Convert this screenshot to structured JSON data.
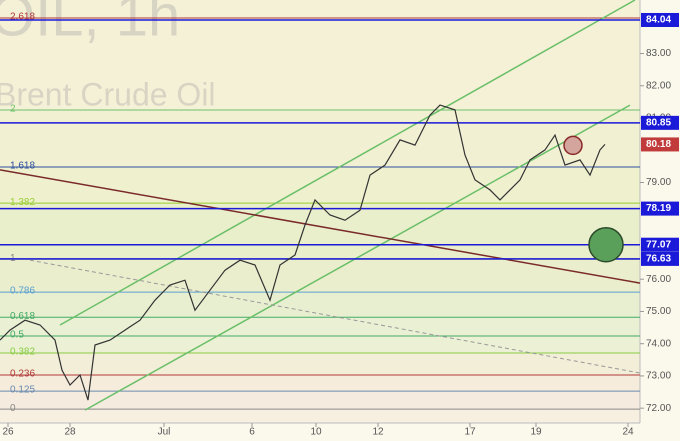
{
  "chart_data": {
    "type": "line",
    "title": "OIL, 1h",
    "subtitle": "Brent Crude Oil",
    "xlim": [
      0,
      160
    ],
    "ylim": [
      71.54,
      84.66
    ],
    "xticks": [
      {
        "value": 2,
        "label": "26"
      },
      {
        "value": 17.5,
        "label": "28"
      },
      {
        "value": 41,
        "label": "Jul"
      },
      {
        "value": 63,
        "label": "6"
      },
      {
        "value": 79,
        "label": "10"
      },
      {
        "value": 94.5,
        "label": "12"
      },
      {
        "value": 117.5,
        "label": "17"
      },
      {
        "value": 134,
        "label": "19"
      },
      {
        "value": 157,
        "label": "24"
      }
    ],
    "yticks": [
      {
        "value": 72,
        "label": "72.00"
      },
      {
        "value": 73,
        "label": "73.00"
      },
      {
        "value": 74,
        "label": "74.00"
      },
      {
        "value": 75,
        "label": "75.00"
      },
      {
        "value": 76,
        "label": "76.00"
      },
      {
        "value": 79,
        "label": "79.00"
      },
      {
        "value": 81,
        "label": "81.00"
      },
      {
        "value": 82,
        "label": "82.00"
      },
      {
        "value": 83,
        "label": "83.00"
      }
    ],
    "series": [
      {
        "name": "Brent Crude Oil",
        "color": "#333333",
        "x": [
          0,
          2.5,
          6.25,
          10,
          13.75,
          15.5,
          17.5,
          20,
          22,
          23.75,
          27.5,
          31.25,
          35,
          38.75,
          42.5,
          46.25,
          48.75,
          52.5,
          56.25,
          60,
          63.75,
          67.5,
          70,
          73.75,
          76.25,
          78.75,
          82.5,
          86.25,
          90,
          92.5,
          96.25,
          100,
          103.75,
          107.5,
          110,
          113.75,
          116.25,
          118.75,
          122.5,
          125,
          127.5,
          130,
          132.5,
          136.25,
          138.75,
          141.25,
          145,
          147.5,
          150,
          151.25
        ],
        "values": [
          74.11,
          74.42,
          74.73,
          74.58,
          74.11,
          73.18,
          72.72,
          73.03,
          72.25,
          73.96,
          74.11,
          74.42,
          74.73,
          75.35,
          75.82,
          75.97,
          75.04,
          75.66,
          76.28,
          76.59,
          76.44,
          75.35,
          76.44,
          76.75,
          77.68,
          78.46,
          77.99,
          77.83,
          78.14,
          79.23,
          79.54,
          80.32,
          80.16,
          81.09,
          81.4,
          81.25,
          79.85,
          79.08,
          78.77,
          78.46,
          78.77,
          79.08,
          79.7,
          80.01,
          80.47,
          79.54,
          79.7,
          79.23,
          80.01,
          80.18
        ]
      }
    ],
    "fib_levels": [
      {
        "label": "2.618",
        "price": 84.1,
        "color": "#b03a3a",
        "band": "#f5f1d6"
      },
      {
        "label": "2",
        "price": 81.25,
        "color": "#6abf69",
        "band": "#f1f0d2"
      },
      {
        "label": "1.618",
        "price": 79.48,
        "color": "#3050a0",
        "band": "#eef0ce"
      },
      {
        "label": "1.382",
        "price": 78.36,
        "color": "#9acd32",
        "band": "#e9eecb"
      },
      {
        "label": "1",
        "price": 76.62,
        "color": "#888888",
        "band": "#eaeecc"
      },
      {
        "label": "0.786",
        "price": 75.6,
        "color": "#5aa0d0",
        "band": "#e8efd0"
      },
      {
        "label": "0.618",
        "price": 74.82,
        "color": "#44aa66",
        "band": "#e9f0d3"
      },
      {
        "label": "0.5",
        "price": 74.24,
        "color": "#44aa66",
        "band": "#ecf1d5"
      },
      {
        "label": "0.382",
        "price": 73.71,
        "color": "#88cc44",
        "band": "#f3eed8"
      },
      {
        "label": "0.236",
        "price": 73.03,
        "color": "#b03a3a",
        "band": "#f6ecdc"
      },
      {
        "label": "0.125",
        "price": 72.53,
        "color": "#6a8ab0",
        "band": "#f5ecdf"
      },
      {
        "label": "0",
        "price": 71.97,
        "color": "#888888",
        "band": "#f7efe0"
      }
    ],
    "key_levels": [
      84.04,
      80.85,
      78.19,
      77.07,
      76.63
    ],
    "key_color": "#1a1ad8",
    "last_price": 80.18,
    "last_color": "#c23b3b",
    "trend_lines": [
      {
        "x": [
          15,
          158.75
        ],
        "price": [
          74.58,
          84.66
        ],
        "color": "#6abf69",
        "dash": false
      },
      {
        "x": [
          21.25,
          157.5
        ],
        "price": [
          71.94,
          81.4
        ],
        "color": "#6abf69",
        "dash": false
      },
      {
        "x": [
          0,
          160
        ],
        "price": [
          79.39,
          75.88
        ],
        "color": "#7a2a2a",
        "dash": false
      },
      {
        "x": [
          7.5,
          160
        ],
        "price": [
          76.59,
          73.09
        ],
        "color": "#999999",
        "dash": true
      }
    ],
    "circles": [
      {
        "x": 143.25,
        "price": 80.15,
        "color": "#d4a59c",
        "stroke": "#8a2a2a"
      },
      {
        "x": 151.5,
        "price": 77.07,
        "color": "#5aa05a",
        "stroke": "#2a4a2a"
      }
    ]
  }
}
